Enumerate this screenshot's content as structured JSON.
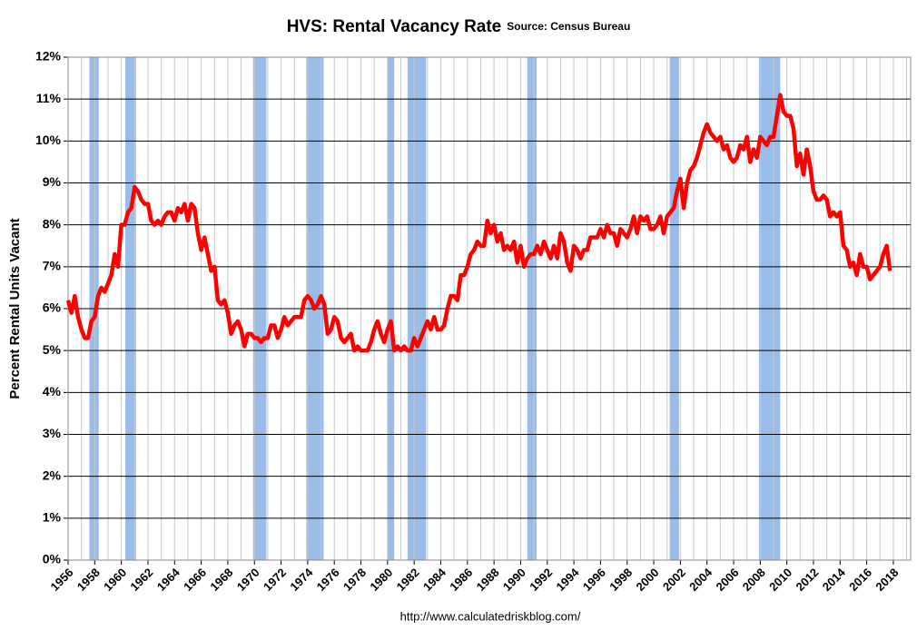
{
  "chart_data": {
    "type": "line",
    "title": "HVS: Rental Vacancy Rate",
    "subtitle": "Source: Census Bureau",
    "y_label": "Percent Rental Units Vacant",
    "footer": "http://www.calculatedriskblog.com/",
    "xlim": [
      1956,
      2019.3
    ],
    "ylim": [
      0,
      12
    ],
    "xticks": [
      1956,
      1958,
      1960,
      1962,
      1964,
      1966,
      1968,
      1970,
      1972,
      1974,
      1976,
      1978,
      1980,
      1982,
      1984,
      1986,
      1988,
      1990,
      1992,
      1994,
      1996,
      1998,
      2000,
      2002,
      2004,
      2006,
      2008,
      2010,
      2012,
      2014,
      2016,
      2018
    ],
    "x_minor_grid": [
      1957,
      1959,
      1961,
      1963,
      1965,
      1967,
      1969,
      1971,
      1973,
      1975,
      1977,
      1979,
      1981,
      1983,
      1985,
      1987,
      1989,
      1991,
      1993,
      1995,
      1997,
      1999,
      2001,
      2003,
      2005,
      2007,
      2009,
      2011,
      2013,
      2015,
      2017,
      2019
    ],
    "yticks": [
      {
        "value": 0,
        "label": "0%"
      },
      {
        "value": 1,
        "label": "1%"
      },
      {
        "value": 2,
        "label": "2%"
      },
      {
        "value": 3,
        "label": "3%"
      },
      {
        "value": 4,
        "label": "4%"
      },
      {
        "value": 5,
        "label": "5%"
      },
      {
        "value": 6,
        "label": "6%"
      },
      {
        "value": 7,
        "label": "7%"
      },
      {
        "value": 8,
        "label": "8%"
      },
      {
        "value": 9,
        "label": "9%"
      },
      {
        "value": 10,
        "label": "10%"
      },
      {
        "value": 11,
        "label": "11%"
      },
      {
        "value": 12,
        "label": "12%"
      }
    ],
    "grid": true,
    "recession_color": "#99bde8",
    "recessions": [
      [
        1957.6,
        1958.3
      ],
      [
        1960.3,
        1961.1
      ],
      [
        1969.9,
        1970.9
      ],
      [
        1973.9,
        1975.2
      ],
      [
        1980.0,
        1980.5
      ],
      [
        1981.5,
        1982.9
      ],
      [
        1990.5,
        1991.2
      ],
      [
        2001.2,
        2001.9
      ],
      [
        2007.9,
        2009.5
      ]
    ],
    "x": [
      1956,
      1956.25,
      1956.5,
      1956.75,
      1957,
      1957.25,
      1957.5,
      1957.75,
      1958,
      1958.25,
      1958.5,
      1958.75,
      1959,
      1959.25,
      1959.5,
      1959.75,
      1960,
      1960.25,
      1960.5,
      1960.75,
      1961,
      1961.25,
      1961.5,
      1961.75,
      1962,
      1962.25,
      1962.5,
      1962.75,
      1963,
      1963.25,
      1963.5,
      1963.75,
      1964,
      1964.25,
      1964.5,
      1964.75,
      1965,
      1965.25,
      1965.5,
      1965.75,
      1966,
      1966.25,
      1966.5,
      1966.75,
      1967,
      1967.25,
      1967.5,
      1967.75,
      1968,
      1968.25,
      1968.5,
      1968.75,
      1969,
      1969.25,
      1969.5,
      1969.75,
      1970,
      1970.25,
      1970.5,
      1970.75,
      1971,
      1971.25,
      1971.5,
      1971.75,
      1972,
      1972.25,
      1972.5,
      1972.75,
      1973,
      1973.25,
      1973.5,
      1973.75,
      1974,
      1974.25,
      1974.5,
      1974.75,
      1975,
      1975.25,
      1975.5,
      1975.75,
      1976,
      1976.25,
      1976.5,
      1976.75,
      1977,
      1977.25,
      1977.5,
      1977.75,
      1978,
      1978.25,
      1978.5,
      1978.75,
      1979,
      1979.25,
      1979.5,
      1979.75,
      1980,
      1980.25,
      1980.5,
      1980.75,
      1981,
      1981.25,
      1981.5,
      1981.75,
      1982,
      1982.25,
      1982.5,
      1982.75,
      1983,
      1983.25,
      1983.5,
      1983.75,
      1984,
      1984.25,
      1984.5,
      1984.75,
      1985,
      1985.25,
      1985.5,
      1985.75,
      1986,
      1986.25,
      1986.5,
      1986.75,
      1987,
      1987.25,
      1987.5,
      1987.75,
      1988,
      1988.25,
      1988.5,
      1988.75,
      1989,
      1989.25,
      1989.5,
      1989.75,
      1990,
      1990.25,
      1990.5,
      1990.75,
      1991,
      1991.25,
      1991.5,
      1991.75,
      1992,
      1992.25,
      1992.5,
      1992.75,
      1993,
      1993.25,
      1993.5,
      1993.75,
      1994,
      1994.25,
      1994.5,
      1994.75,
      1995,
      1995.25,
      1995.5,
      1995.75,
      1996,
      1996.25,
      1996.5,
      1996.75,
      1997,
      1997.25,
      1997.5,
      1997.75,
      1998,
      1998.25,
      1998.5,
      1998.75,
      1999,
      1999.25,
      1999.5,
      1999.75,
      2000,
      2000.25,
      2000.5,
      2000.75,
      2001,
      2001.25,
      2001.5,
      2001.75,
      2002,
      2002.25,
      2002.5,
      2002.75,
      2003,
      2003.25,
      2003.5,
      2003.75,
      2004,
      2004.25,
      2004.5,
      2004.75,
      2005,
      2005.25,
      2005.5,
      2005.75,
      2006,
      2006.25,
      2006.5,
      2006.75,
      2007,
      2007.25,
      2007.5,
      2007.75,
      2008,
      2008.25,
      2008.5,
      2008.75,
      2009,
      2009.25,
      2009.5,
      2009.75,
      2010,
      2010.25,
      2010.5,
      2010.75,
      2011,
      2011.25,
      2011.5,
      2011.75,
      2012,
      2012.25,
      2012.5,
      2012.75,
      2013,
      2013.25,
      2013.5,
      2013.75,
      2014,
      2014.25,
      2014.5,
      2014.75,
      2015,
      2015.25,
      2015.5,
      2015.75,
      2016,
      2016.25,
      2016.5,
      2016.75,
      2017,
      2017.25,
      2017.5,
      2017.75
    ],
    "series": [
      {
        "color": "#ff0000",
        "values": [
          6.2,
          5.9,
          6.3,
          5.8,
          5.5,
          5.3,
          5.3,
          5.7,
          5.8,
          6.3,
          6.5,
          6.4,
          6.6,
          6.8,
          7.3,
          7.0,
          8.0,
          8.0,
          8.3,
          8.4,
          8.9,
          8.8,
          8.6,
          8.5,
          8.5,
          8.1,
          8.0,
          8.1,
          8.0,
          8.2,
          8.3,
          8.3,
          8.1,
          8.4,
          8.3,
          8.5,
          8.1,
          8.5,
          8.4,
          7.8,
          7.4,
          7.7,
          7.3,
          6.9,
          7.0,
          6.2,
          6.1,
          6.2,
          5.9,
          5.4,
          5.6,
          5.7,
          5.5,
          5.1,
          5.4,
          5.4,
          5.3,
          5.3,
          5.2,
          5.3,
          5.3,
          5.6,
          5.6,
          5.3,
          5.5,
          5.8,
          5.6,
          5.7,
          5.8,
          5.8,
          5.8,
          6.2,
          6.3,
          6.2,
          6.0,
          6.1,
          6.3,
          6.1,
          5.4,
          5.5,
          5.8,
          5.7,
          5.3,
          5.2,
          5.3,
          5.4,
          5.0,
          5.1,
          5.0,
          5.0,
          5.0,
          5.2,
          5.5,
          5.7,
          5.4,
          5.2,
          5.5,
          5.7,
          5.0,
          5.1,
          5.0,
          5.1,
          5.0,
          5.0,
          5.3,
          5.1,
          5.3,
          5.5,
          5.7,
          5.5,
          5.8,
          5.5,
          5.5,
          5.6,
          6.0,
          6.3,
          6.3,
          6.2,
          6.8,
          6.8,
          7.0,
          7.3,
          7.4,
          7.6,
          7.5,
          7.5,
          8.1,
          7.8,
          8.0,
          7.6,
          7.8,
          7.4,
          7.5,
          7.4,
          7.6,
          7.1,
          7.5,
          7.0,
          7.2,
          7.3,
          7.3,
          7.5,
          7.3,
          7.6,
          7.4,
          7.2,
          7.5,
          7.2,
          7.8,
          7.6,
          7.1,
          6.9,
          7.5,
          7.4,
          7.2,
          7.4,
          7.4,
          7.7,
          7.7,
          7.7,
          7.9,
          7.7,
          8.0,
          7.8,
          7.8,
          7.5,
          7.9,
          7.8,
          7.7,
          7.9,
          8.2,
          7.8,
          8.2,
          8.1,
          8.2,
          7.9,
          7.9,
          8.0,
          8.2,
          7.8,
          8.2,
          8.3,
          8.4,
          8.8,
          9.1,
          8.4,
          9.0,
          9.3,
          9.4,
          9.6,
          9.9,
          10.2,
          10.4,
          10.2,
          10.1,
          10.0,
          10.1,
          9.8,
          9.9,
          9.6,
          9.5,
          9.6,
          9.9,
          9.8,
          10.1,
          9.5,
          9.8,
          9.6,
          10.1,
          10.0,
          9.9,
          10.1,
          10.1,
          10.6,
          11.1,
          10.7,
          10.6,
          10.6,
          10.3,
          9.4,
          9.7,
          9.2,
          9.8,
          9.4,
          8.8,
          8.6,
          8.6,
          8.7,
          8.6,
          8.2,
          8.3,
          8.2,
          8.3,
          7.5,
          7.4,
          7.0,
          7.1,
          6.8,
          7.3,
          7.0,
          7.0,
          6.7,
          6.8,
          6.9,
          7.0,
          7.3,
          7.5,
          6.9
        ]
      }
    ]
  }
}
